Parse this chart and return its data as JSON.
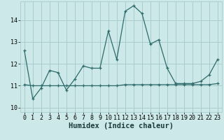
{
  "title": "",
  "xlabel": "Humidex (Indice chaleur)",
  "xlim": [
    -0.5,
    23.5
  ],
  "ylim": [
    9.8,
    14.85
  ],
  "yticks": [
    10,
    11,
    12,
    13,
    14
  ],
  "xticks": [
    0,
    1,
    2,
    3,
    4,
    5,
    6,
    7,
    8,
    9,
    10,
    11,
    12,
    13,
    14,
    15,
    16,
    17,
    18,
    19,
    20,
    21,
    22,
    23
  ],
  "line1_x": [
    0,
    1,
    2,
    3,
    4,
    5,
    6,
    7,
    8,
    9,
    10,
    11,
    12,
    13,
    14,
    15,
    16,
    17,
    18,
    19,
    20,
    21,
    22,
    23
  ],
  "line1_y": [
    12.6,
    10.4,
    10.9,
    11.7,
    11.6,
    10.8,
    11.3,
    11.9,
    11.8,
    11.8,
    13.5,
    12.2,
    14.4,
    14.65,
    14.3,
    12.9,
    13.1,
    11.8,
    11.1,
    11.1,
    11.1,
    11.2,
    11.5,
    12.2
  ],
  "line2_x": [
    0,
    1,
    2,
    3,
    4,
    5,
    6,
    7,
    8,
    9,
    10,
    11,
    12,
    13,
    14,
    15,
    16,
    17,
    18,
    19,
    20,
    21,
    22,
    23
  ],
  "line2_y": [
    11.05,
    11.0,
    11.0,
    11.0,
    11.0,
    11.0,
    11.0,
    11.0,
    11.0,
    11.0,
    11.0,
    11.0,
    11.05,
    11.05,
    11.05,
    11.05,
    11.05,
    11.05,
    11.05,
    11.05,
    11.05,
    11.05,
    11.05,
    11.1
  ],
  "line_color": "#2e6b6b",
  "bg_color": "#cce8e8",
  "grid_color": "#a8cccc",
  "tick_label_fontsize": 6,
  "xlabel_fontsize": 7.5,
  "marker": "+"
}
